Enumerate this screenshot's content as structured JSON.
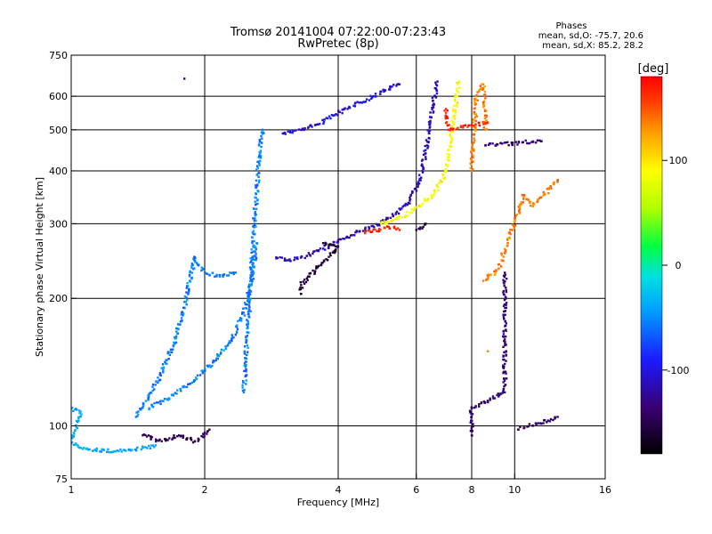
{
  "chart_data": {
    "type": "scatter",
    "title": "Tromsø 20141004 07:22:00-07:23:43",
    "subtitle": "RwPretec (8p)",
    "xlabel": "Frequency [MHz]",
    "ylabel": "Stationary phase Virtual Height [km]",
    "x_scale": "log",
    "y_scale": "log",
    "xlim": [
      1,
      16
    ],
    "ylim": [
      75,
      750
    ],
    "x_ticks": [
      1,
      2,
      4,
      6,
      8,
      10,
      16
    ],
    "x_tick_labels": [
      "1",
      "2",
      "4",
      "6",
      "8",
      "10",
      "16"
    ],
    "y_ticks": [
      75,
      100,
      200,
      300,
      400,
      500,
      600,
      750
    ],
    "y_tick_labels": [
      "75",
      "100",
      "200",
      "300",
      "400",
      "500",
      "600",
      "750"
    ],
    "x_gridlines": [
      2,
      4,
      6,
      8,
      10
    ],
    "y_gridlines": [
      100,
      200,
      300,
      400,
      500,
      600
    ],
    "grid": true,
    "colorbar": {
      "unit": "[deg]",
      "range": [
        -180,
        180
      ],
      "ticks": [
        100,
        0,
        -100
      ],
      "tick_labels": [
        "100",
        "0",
        "-100"
      ],
      "colors": [
        "#000000",
        "#3a0070",
        "#1a1aff",
        "#00bfff",
        "#00e0e0",
        "#00ff40",
        "#b0ff00",
        "#ffff00",
        "#ffa000",
        "#ff4000",
        "#ff0000"
      ]
    },
    "stats": {
      "heading": "Phases",
      "line1": "mean, sd,O:  -75.7, 20.6",
      "line2": "mean, sd,X:  85.2, 28.2"
    },
    "series": [
      {
        "phase": -110,
        "points": [
          [
            3.0,
            490
          ],
          [
            3.3,
            500
          ],
          [
            3.6,
            515
          ],
          [
            3.9,
            540
          ],
          [
            4.2,
            560
          ],
          [
            4.5,
            580
          ],
          [
            4.8,
            600
          ],
          [
            5.1,
            620
          ],
          [
            5.5,
            640
          ]
        ]
      },
      {
        "phase": -120,
        "points": [
          [
            2.9,
            250
          ],
          [
            3.1,
            246
          ],
          [
            3.4,
            252
          ],
          [
            3.7,
            262
          ],
          [
            4.0,
            272
          ],
          [
            4.3,
            282
          ],
          [
            4.6,
            292
          ],
          [
            5.0,
            300
          ],
          [
            5.4,
            318
          ],
          [
            5.8,
            340
          ],
          [
            6.1,
            380
          ],
          [
            6.3,
            440
          ],
          [
            6.45,
            520
          ],
          [
            6.6,
            600
          ],
          [
            6.7,
            650
          ]
        ]
      },
      {
        "phase": 90,
        "points": [
          [
            5.0,
            300
          ],
          [
            5.4,
            308
          ],
          [
            5.8,
            318
          ],
          [
            6.2,
            335
          ],
          [
            6.6,
            355
          ],
          [
            6.9,
            385
          ],
          [
            7.1,
            430
          ],
          [
            7.2,
            480
          ],
          [
            7.3,
            540
          ],
          [
            7.4,
            600
          ],
          [
            7.5,
            650
          ]
        ]
      },
      {
        "phase": -70,
        "points": [
          [
            2.45,
            120
          ],
          [
            2.5,
            170
          ],
          [
            2.55,
            230
          ],
          [
            2.6,
            320
          ],
          [
            2.65,
            420
          ],
          [
            2.7,
            500
          ]
        ]
      },
      {
        "phase": -70,
        "points": [
          [
            1.5,
            110
          ],
          [
            1.7,
            118
          ],
          [
            1.9,
            128
          ],
          [
            2.1,
            142
          ],
          [
            2.3,
            160
          ],
          [
            2.45,
            185
          ],
          [
            2.55,
            220
          ],
          [
            2.62,
            270
          ]
        ]
      },
      {
        "phase": -70,
        "points": [
          [
            1.4,
            105
          ],
          [
            1.55,
            125
          ],
          [
            1.7,
            155
          ],
          [
            1.8,
            190
          ],
          [
            1.85,
            220
          ],
          [
            1.9,
            250
          ],
          [
            2.0,
            230
          ],
          [
            2.2,
            225
          ],
          [
            2.35,
            230
          ]
        ]
      },
      {
        "phase": -55,
        "points": [
          [
            1.0,
            110
          ],
          [
            1.05,
            108
          ],
          [
            1.0,
            91
          ],
          [
            1.1,
            88
          ],
          [
            1.25,
            87
          ],
          [
            1.4,
            88
          ],
          [
            1.55,
            90
          ]
        ]
      },
      {
        "phase": -150,
        "points": [
          [
            1.45,
            95
          ],
          [
            1.6,
            92
          ],
          [
            1.75,
            95
          ],
          [
            1.9,
            92
          ],
          [
            2.05,
            98
          ]
        ]
      },
      {
        "phase": 140,
        "points": [
          [
            8.0,
            400
          ],
          [
            8.2,
            600
          ],
          [
            8.5,
            640
          ],
          [
            8.6,
            500
          ],
          [
            8.5,
            220
          ],
          [
            9.2,
            235
          ],
          [
            10.5,
            350
          ],
          [
            11.0,
            330
          ],
          [
            12.5,
            380
          ],
          [
            8.7,
            150
          ]
        ]
      },
      {
        "phase": -140,
        "points": [
          [
            1.8,
            660
          ],
          [
            9.5,
            230
          ],
          [
            9.5,
            160
          ],
          [
            9.5,
            140
          ],
          [
            9.5,
            120
          ],
          [
            8.0,
            110
          ],
          [
            8.0,
            95
          ],
          [
            12.5,
            105
          ],
          [
            10.2,
            98
          ],
          [
            11.5,
            470
          ],
          [
            8.6,
            460
          ]
        ]
      },
      {
        "phase": 170,
        "points": [
          [
            4.6,
            285
          ],
          [
            5.2,
            295
          ],
          [
            5.5,
            290
          ],
          [
            7.0,
            560
          ],
          [
            7.1,
            500
          ],
          [
            8.7,
            520
          ]
        ]
      },
      {
        "phase": -160,
        "points": [
          [
            3.7,
            270
          ],
          [
            4.0,
            265
          ],
          [
            3.3,
            215
          ],
          [
            3.3,
            205
          ],
          [
            6.0,
            290
          ],
          [
            6.3,
            300
          ]
        ]
      }
    ]
  }
}
